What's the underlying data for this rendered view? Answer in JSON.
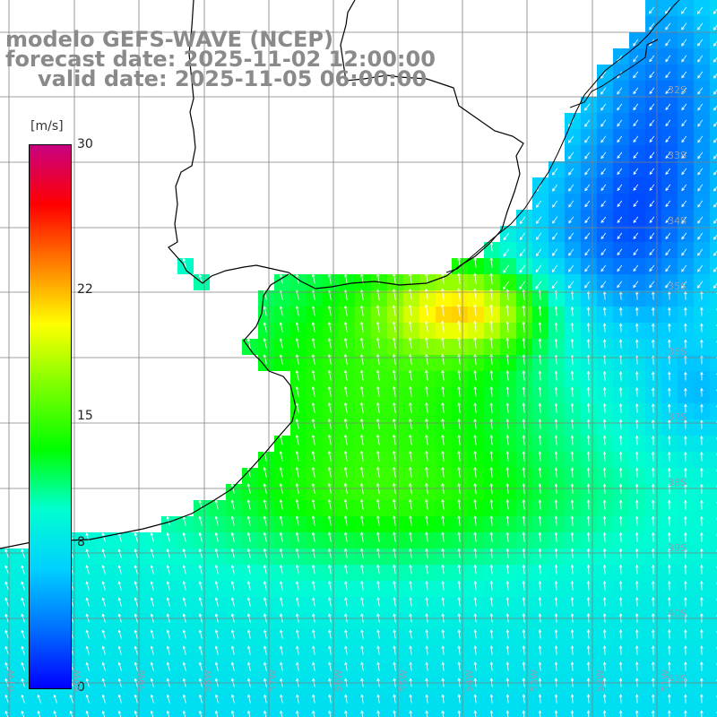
{
  "title": {
    "line1": "modelo GEFS-WAVE (NCEP)",
    "line2": "forecast date: 2025-11-02 12:00:00",
    "line3": "valid date: 2025-11-05 06:00:00"
  },
  "colorbar": {
    "unit": "[m/s]",
    "ticks": [
      "30",
      "22",
      "15",
      "8",
      "0"
    ],
    "tick_values": [
      30,
      22,
      15,
      8,
      0
    ],
    "min": 0,
    "max": 30,
    "colors": [
      "#0000ff",
      "#0070ff",
      "#00d0ff",
      "#00ffd0",
      "#00ff00",
      "#80ff00",
      "#ffff00",
      "#ff8000",
      "#ff0000",
      "#c80080"
    ]
  },
  "axes": {
    "lat_labels": [
      "32S",
      "33S",
      "34S",
      "35S",
      "36S",
      "37S",
      "38S",
      "39S",
      "40S",
      "41S"
    ],
    "lon_labels": [
      "61W",
      "60W",
      "59W",
      "58W",
      "57W",
      "56W",
      "55W",
      "54W",
      "53W",
      "52W",
      "51W"
    ]
  },
  "map_colors": {
    "land": "#ffffff",
    "coast": "#000000",
    "grid": "#808080",
    "arrow": "#ffffff"
  }
}
